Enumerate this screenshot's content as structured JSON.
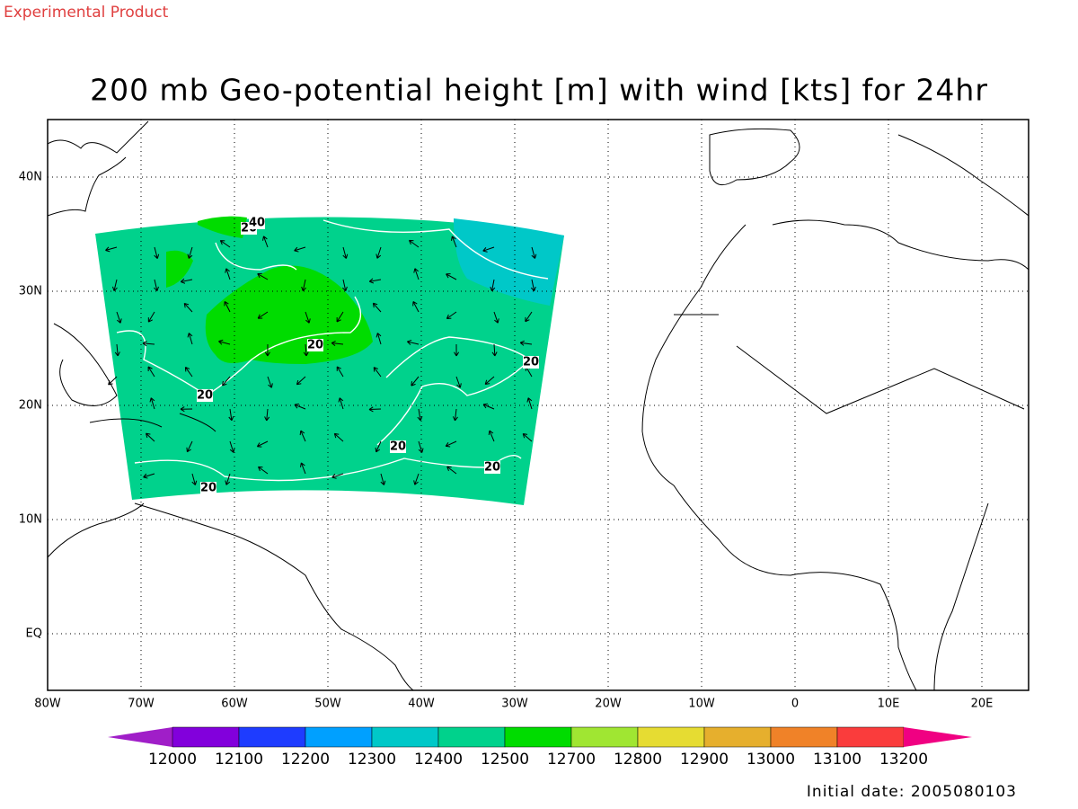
{
  "header": {
    "note": "Experimental Product",
    "title": "200 mb Geo-potential height [m] with wind [kts] for 24hr"
  },
  "map": {
    "lat_labels": [
      "40N",
      "30N",
      "20N",
      "10N",
      "EQ"
    ],
    "lon_labels": [
      "80W",
      "70W",
      "60W",
      "50W",
      "40W",
      "30W",
      "20W",
      "10W",
      "0",
      "10E",
      "20E"
    ],
    "contour_labels": [
      20,
      40,
      20,
      20,
      20,
      20,
      20,
      20
    ]
  },
  "colorbar": {
    "colors": [
      "#a01ec8",
      "#8200dc",
      "#1e3cff",
      "#00a0ff",
      "#00c8c8",
      "#00d28c",
      "#00dc00",
      "#a0e632",
      "#e6dc32",
      "#e6af2d",
      "#f08228",
      "#fa3c3c",
      "#f00082"
    ],
    "levels": [
      12000,
      12100,
      12200,
      12300,
      12400,
      12500,
      12700,
      12800,
      12900,
      13000,
      13100,
      13200
    ]
  },
  "footer": {
    "initial_date": "Initial date: 2005080103"
  }
}
